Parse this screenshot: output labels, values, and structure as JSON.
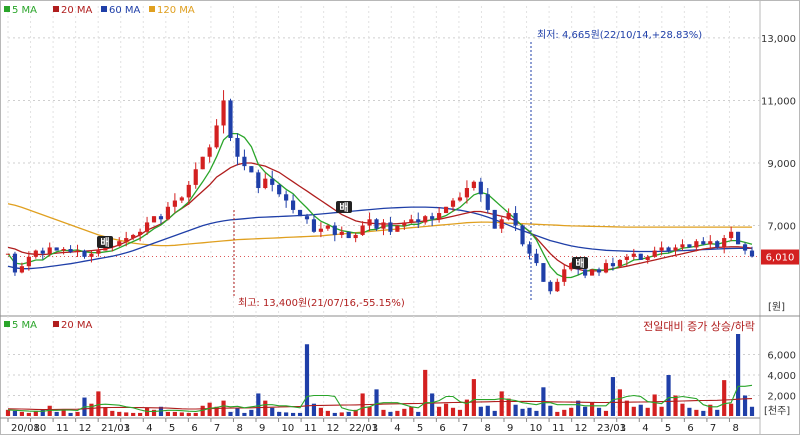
{
  "chart_data": {
    "type": "candlestick",
    "x_labels": [
      "20/08",
      "10",
      "11",
      "12",
      "21/01",
      "3",
      "4",
      "5",
      "6",
      "7",
      "8",
      "9",
      "10",
      "11",
      "12",
      "22/01",
      "3",
      "4",
      "5",
      "6",
      "7",
      "8",
      "9",
      "10",
      "11",
      "12",
      "23/01",
      "3",
      "4",
      "5",
      "6",
      "7",
      "8"
    ],
    "price_panel": {
      "y_ticks": [
        "13,000",
        "11,000",
        "9,000",
        "7,000"
      ],
      "y_tick_values": [
        13000,
        11000,
        9000,
        7000
      ],
      "ylim": [
        4300,
        13700
      ],
      "unit_label": "[원]",
      "current_price_label": "6,010",
      "current_price": 6010,
      "legend": [
        {
          "label": "5 MA",
          "color": "#2aa52a"
        },
        {
          "label": "20 MA",
          "color": "#b01e1e"
        },
        {
          "label": "60 MA",
          "color": "#1f3fa8"
        },
        {
          "label": "120 MA",
          "color": "#e0a020"
        }
      ],
      "annotations": {
        "low": "최저: 4,665원(22/10/14,+28.83%)",
        "high": "최고: 13,400원(21/07/16,-55.15%)"
      },
      "badges": [
        "배",
        "배",
        "배"
      ],
      "close": [
        6100,
        5500,
        5700,
        6000,
        6200,
        6100,
        6300,
        6200,
        6250,
        6150,
        6200,
        6000,
        6100,
        6200,
        6300,
        6350,
        6500,
        6600,
        6700,
        6800,
        7100,
        7300,
        7200,
        7600,
        7800,
        7900,
        8300,
        8800,
        9200,
        9500,
        10200,
        11000,
        9800,
        9200,
        8900,
        8700,
        8200,
        8500,
        8300,
        8000,
        7800,
        7500,
        7300,
        7200,
        6800,
        6900,
        7000,
        6700,
        6800,
        6600,
        6700,
        7000,
        7200,
        6900,
        7100,
        6800,
        7000,
        7100,
        7200,
        7100,
        7300,
        7200,
        7400,
        7600,
        7800,
        7900,
        8200,
        8400,
        8000,
        7500,
        6900,
        7200,
        7400,
        7000,
        6400,
        6100,
        5800,
        5200,
        4900,
        5200,
        5600,
        5800,
        5600,
        5400,
        5600,
        5500,
        5800,
        5700,
        5900,
        6000,
        6100,
        5900,
        6000,
        6200,
        6300,
        6200,
        6300,
        6400,
        6300,
        6500,
        6400,
        6500,
        6300,
        6600,
        6800,
        6400,
        6200,
        6010
      ],
      "ma20": [
        6300,
        6250,
        6150,
        6100,
        6080,
        6070,
        6090,
        6120,
        6140,
        6150,
        6170,
        6180,
        6200,
        6220,
        6250,
        6300,
        6380,
        6480,
        6600,
        6700,
        6850,
        6950,
        7050,
        7200,
        7400,
        7550,
        7700,
        7900,
        8100,
        8300,
        8550,
        8700,
        8850,
        8950,
        9000,
        9000,
        8950,
        8900,
        8800,
        8700,
        8550,
        8400,
        8250,
        8100,
        7950,
        7800,
        7650,
        7500,
        7350,
        7250,
        7150,
        7100,
        7080,
        7060,
        7050,
        7050,
        7060,
        7080,
        7100,
        7120,
        7150,
        7180,
        7200,
        7250,
        7300,
        7350,
        7400,
        7450,
        7450,
        7400,
        7350,
        7300,
        7250,
        7150,
        7000,
        6800,
        6600,
        6350,
        6100,
        5900,
        5750,
        5650,
        5600,
        5550,
        5550,
        5550,
        5580,
        5620,
        5660,
        5700,
        5750,
        5800,
        5850,
        5900,
        5950,
        6000,
        6050,
        6100,
        6150,
        6200,
        6250,
        6280,
        6300,
        6310,
        6320,
        6320,
        6300,
        6280
      ],
      "ma60": [
        5700,
        5650,
        5620,
        5620,
        5640,
        5660,
        5690,
        5720,
        5750,
        5780,
        5820,
        5860,
        5900,
        5940,
        5980,
        6020,
        6070,
        6130,
        6200,
        6280,
        6360,
        6440,
        6520,
        6600,
        6680,
        6760,
        6840,
        6920,
        7000,
        7060,
        7110,
        7150,
        7180,
        7200,
        7220,
        7240,
        7260,
        7270,
        7280,
        7290,
        7300,
        7310,
        7320,
        7330,
        7350,
        7370,
        7390,
        7410,
        7430,
        7450,
        7470,
        7490,
        7510,
        7530,
        7550,
        7560,
        7570,
        7580,
        7590,
        7590,
        7590,
        7580,
        7570,
        7550,
        7520,
        7490,
        7450,
        7400,
        7340,
        7270,
        7190,
        7100,
        7010,
        6920,
        6840,
        6760,
        6680,
        6600,
        6520,
        6460,
        6400,
        6350,
        6310,
        6280,
        6250,
        6230,
        6210,
        6200,
        6190,
        6180,
        6175,
        6170,
        6170,
        6170,
        6175,
        6180,
        6190,
        6200,
        6210,
        6220,
        6230,
        6240,
        6250,
        6260,
        6265,
        6270,
        6270,
        6270
      ],
      "ma120": [
        7700,
        7650,
        7580,
        7500,
        7420,
        7340,
        7260,
        7180,
        7100,
        7020,
        6940,
        6860,
        6780,
        6700,
        6640,
        6580,
        6530,
        6480,
        6440,
        6410,
        6390,
        6370,
        6360,
        6360,
        6370,
        6390,
        6410,
        6430,
        6450,
        6470,
        6490,
        6510,
        6530,
        6550,
        6560,
        6570,
        6580,
        6590,
        6600,
        6610,
        6620,
        6630,
        6640,
        6650,
        6660,
        6670,
        6690,
        6710,
        6730,
        6750,
        6770,
        6790,
        6810,
        6830,
        6850,
        6870,
        6890,
        6910,
        6930,
        6950,
        6970,
        6990,
        7010,
        7030,
        7050,
        7070,
        7090,
        7100,
        7110,
        7110,
        7100,
        7090,
        7080,
        7070,
        7060,
        7050,
        7040,
        7030,
        7020,
        7010,
        7000,
        6990,
        6985,
        6980,
        6975,
        6970,
        6965,
        6960,
        6955,
        6950,
        6950,
        6950,
        6950,
        6950,
        6950,
        6950,
        6950,
        6950,
        6950,
        6950,
        6950,
        6950,
        6950,
        6950,
        6950,
        6950,
        6950,
        6950
      ]
    },
    "volume_panel": {
      "y_ticks": [
        "6,000",
        "4,000",
        "2,000"
      ],
      "y_tick_values": [
        6000,
        4000,
        2000
      ],
      "ylim": [
        0,
        8000
      ],
      "unit_label": "[천주]",
      "legend": [
        {
          "label": "5 MA",
          "color": "#2aa52a"
        },
        {
          "label": "20 MA",
          "color": "#b01e1e"
        }
      ],
      "right_label": "전일대비 증가 상승/하락",
      "volume": [
        600,
        500,
        400,
        300,
        500,
        600,
        1000,
        400,
        600,
        300,
        400,
        1800,
        1200,
        2400,
        800,
        500,
        400,
        350,
        300,
        300,
        800,
        600,
        900,
        400,
        400,
        350,
        300,
        300,
        1000,
        1300,
        900,
        1500,
        400,
        800,
        300,
        600,
        2200,
        1500,
        800,
        400,
        350,
        300,
        300,
        7000,
        1200,
        800,
        500,
        300,
        350,
        400,
        600,
        2200,
        900,
        2600,
        600,
        400,
        500,
        700,
        900,
        400,
        4500,
        2200,
        900,
        1200,
        800,
        600,
        1600,
        3600,
        900,
        1000,
        500,
        2400,
        1700,
        1100,
        700,
        800,
        500,
        2800,
        1000,
        400,
        600,
        800,
        1500,
        900,
        1300,
        800,
        500,
        3800,
        2600,
        1500,
        900,
        1100,
        800,
        2100,
        900,
        4000,
        2000,
        1200,
        800,
        600,
        500,
        1100,
        600,
        3500,
        1200,
        8000,
        2000,
        900
      ],
      "volume_up": [
        true,
        false,
        true,
        true,
        true,
        false,
        true,
        false,
        true,
        false,
        true,
        false,
        true,
        true,
        true,
        true,
        true,
        true,
        true,
        true,
        true,
        true,
        false,
        true,
        true,
        true,
        true,
        true,
        true,
        true,
        true,
        true,
        false,
        false,
        false,
        false,
        false,
        true,
        false,
        false,
        false,
        false,
        false,
        false,
        false,
        true,
        true,
        false,
        true,
        false,
        true,
        true,
        true,
        false,
        true,
        false,
        true,
        true,
        true,
        false,
        true,
        false,
        true,
        true,
        true,
        true,
        true,
        true,
        false,
        false,
        false,
        true,
        true,
        false,
        false,
        false,
        false,
        false,
        false,
        true,
        true,
        true,
        false,
        false,
        true,
        false,
        true,
        false,
        true,
        true,
        true,
        false,
        true,
        true,
        true,
        false,
        true,
        true,
        false,
        true,
        false,
        true,
        false,
        true,
        true,
        false,
        false,
        false
      ],
      "vol_ma5": [
        600,
        560,
        520,
        480,
        460,
        460,
        560,
        560,
        580,
        580,
        540,
        900,
        900,
        1100,
        1150,
        1100,
        1050,
        900,
        800,
        600,
        450,
        450,
        500,
        560,
        560,
        520,
        470,
        450,
        560,
        750,
        830,
        1000,
        900,
        950,
        800,
        900,
        1000,
        1100,
        1100,
        1000,
        1000,
        900,
        800,
        1900,
        2000,
        2000,
        2000,
        1900,
        800,
        600,
        500,
        800,
        900,
        1200,
        1300,
        1300,
        1300,
        1100,
        900,
        800,
        1300,
        1300,
        1500,
        1900,
        1900,
        1400,
        1200,
        1600,
        1600,
        1600,
        1600,
        1700,
        1600,
        1500,
        1300,
        1200,
        1100,
        1300,
        1300,
        1100,
        1100,
        1100,
        1100,
        1000,
        1000,
        1000,
        1000,
        1600,
        1700,
        1900,
        2000,
        1900,
        1400,
        1300,
        1200,
        1800,
        1800,
        1900,
        1800,
        1700,
        1100,
        900,
        900,
        1200,
        1300,
        2900,
        2900,
        3000
      ],
      "vol_ma20": [
        700,
        690,
        680,
        660,
        640,
        620,
        630,
        640,
        650,
        650,
        660,
        700,
        740,
        800,
        820,
        830,
        840,
        840,
        830,
        820,
        810,
        800,
        790,
        770,
        740,
        700,
        680,
        680,
        700,
        720,
        740,
        760,
        770,
        780,
        790,
        800,
        820,
        840,
        860,
        880,
        900,
        920,
        940,
        1000,
        1020,
        1030,
        1040,
        1050,
        1060,
        1070,
        1080,
        1100,
        1120,
        1140,
        1160,
        1180,
        1190,
        1200,
        1210,
        1220,
        1240,
        1260,
        1280,
        1300,
        1320,
        1330,
        1340,
        1360,
        1380,
        1390,
        1400,
        1410,
        1420,
        1420,
        1420,
        1420,
        1410,
        1400,
        1390,
        1380,
        1370,
        1360,
        1350,
        1340,
        1330,
        1320,
        1320,
        1330,
        1340,
        1350,
        1360,
        1370,
        1380,
        1390,
        1400,
        1420,
        1440,
        1460,
        1480,
        1500,
        1510,
        1520,
        1530,
        1560,
        1590,
        1640,
        1680,
        1700
      ]
    }
  }
}
